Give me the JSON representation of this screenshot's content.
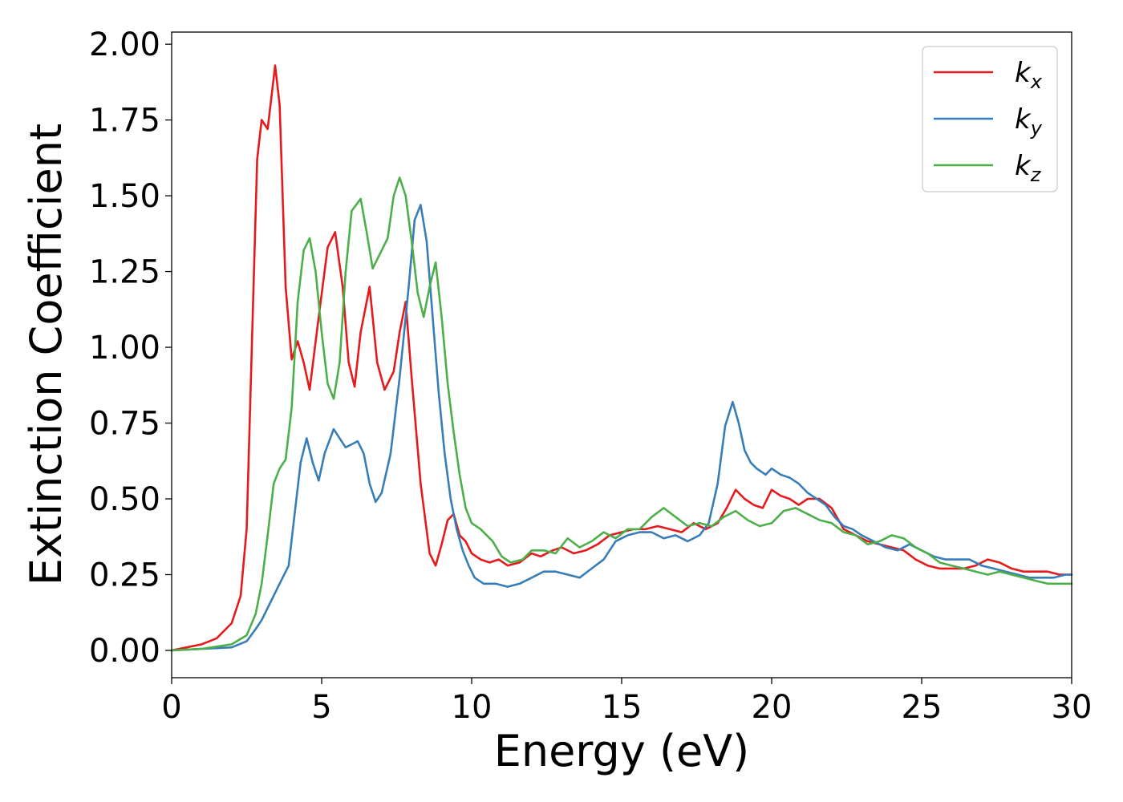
{
  "chart_data": {
    "type": "line",
    "xlabel": "Energy (eV)",
    "ylabel": "Extinction Coefficient",
    "xlim": [
      0,
      30
    ],
    "ylim": [
      -0.09,
      2.04
    ],
    "xticks": [
      "0",
      "5",
      "10",
      "15",
      "20",
      "25",
      "30"
    ],
    "xtick_values": [
      0,
      5,
      10,
      15,
      20,
      25,
      30
    ],
    "yticks": [
      "0.00",
      "0.25",
      "0.50",
      "0.75",
      "1.00",
      "1.25",
      "1.50",
      "1.75",
      "2.00"
    ],
    "ytick_values": [
      0,
      0.25,
      0.5,
      0.75,
      1.0,
      1.25,
      1.5,
      1.75,
      2.0
    ],
    "grid": false,
    "legend_position": "top-right",
    "series": [
      {
        "name": "k",
        "subscript": "x",
        "color": "#e41a1c",
        "x": [
          0,
          0.5,
          1.0,
          1.5,
          2.0,
          2.3,
          2.5,
          2.7,
          2.85,
          3.0,
          3.2,
          3.45,
          3.6,
          3.8,
          4.0,
          4.2,
          4.4,
          4.6,
          4.9,
          5.2,
          5.45,
          5.7,
          5.9,
          6.1,
          6.3,
          6.6,
          6.85,
          7.1,
          7.4,
          7.6,
          7.8,
          8.0,
          8.3,
          8.6,
          8.8,
          9.0,
          9.2,
          9.4,
          9.6,
          9.8,
          10.0,
          10.3,
          10.6,
          10.9,
          11.2,
          11.6,
          12.0,
          12.3,
          12.7,
          13.0,
          13.4,
          13.8,
          14.2,
          14.6,
          15.0,
          15.4,
          15.8,
          16.2,
          16.6,
          17.0,
          17.4,
          17.8,
          18.2,
          18.5,
          18.8,
          19.1,
          19.4,
          19.7,
          20.0,
          20.3,
          20.6,
          20.9,
          21.2,
          21.6,
          22.0,
          22.4,
          22.8,
          23.2,
          23.6,
          24.0,
          24.4,
          24.8,
          25.2,
          25.6,
          26.0,
          26.4,
          26.8,
          27.2,
          27.6,
          28.0,
          28.4,
          28.8,
          29.2,
          29.6,
          30.0
        ],
        "y": [
          0,
          0.01,
          0.02,
          0.04,
          0.09,
          0.18,
          0.4,
          1.1,
          1.62,
          1.75,
          1.72,
          1.93,
          1.8,
          1.2,
          0.96,
          1.02,
          0.95,
          0.86,
          1.1,
          1.33,
          1.38,
          1.2,
          0.95,
          0.87,
          1.05,
          1.2,
          0.95,
          0.86,
          0.92,
          1.05,
          1.15,
          0.9,
          0.55,
          0.32,
          0.28,
          0.35,
          0.43,
          0.45,
          0.38,
          0.36,
          0.32,
          0.3,
          0.29,
          0.3,
          0.28,
          0.29,
          0.32,
          0.31,
          0.33,
          0.34,
          0.32,
          0.33,
          0.35,
          0.38,
          0.39,
          0.4,
          0.4,
          0.41,
          0.4,
          0.39,
          0.42,
          0.4,
          0.42,
          0.47,
          0.53,
          0.5,
          0.48,
          0.47,
          0.53,
          0.51,
          0.5,
          0.48,
          0.5,
          0.5,
          0.47,
          0.4,
          0.38,
          0.36,
          0.35,
          0.34,
          0.33,
          0.3,
          0.28,
          0.27,
          0.27,
          0.27,
          0.28,
          0.3,
          0.29,
          0.27,
          0.26,
          0.26,
          0.26,
          0.25,
          0.25
        ]
      },
      {
        "name": "k",
        "subscript": "y",
        "color": "#377eb8",
        "x": [
          0,
          1.0,
          2.0,
          2.5,
          2.8,
          3.0,
          3.3,
          3.6,
          3.9,
          4.1,
          4.3,
          4.5,
          4.7,
          4.9,
          5.1,
          5.4,
          5.6,
          5.8,
          6.0,
          6.2,
          6.4,
          6.6,
          6.8,
          7.0,
          7.3,
          7.6,
          7.9,
          8.1,
          8.3,
          8.5,
          8.7,
          8.9,
          9.1,
          9.3,
          9.5,
          9.7,
          9.9,
          10.1,
          10.4,
          10.8,
          11.2,
          11.6,
          12.0,
          12.4,
          12.8,
          13.2,
          13.6,
          14.0,
          14.4,
          14.8,
          15.2,
          15.6,
          16.0,
          16.4,
          16.8,
          17.2,
          17.6,
          17.9,
          18.2,
          18.45,
          18.7,
          18.9,
          19.1,
          19.3,
          19.5,
          19.8,
          20.0,
          20.3,
          20.6,
          20.9,
          21.2,
          21.5,
          21.8,
          22.1,
          22.4,
          22.7,
          23.0,
          23.4,
          23.8,
          24.2,
          24.6,
          25.0,
          25.4,
          25.8,
          26.2,
          26.6,
          27.0,
          27.4,
          27.8,
          28.2,
          28.6,
          29.0,
          29.4,
          29.8,
          30.0
        ],
        "y": [
          0,
          0.005,
          0.01,
          0.03,
          0.07,
          0.1,
          0.16,
          0.22,
          0.28,
          0.45,
          0.62,
          0.7,
          0.62,
          0.56,
          0.65,
          0.73,
          0.7,
          0.67,
          0.68,
          0.69,
          0.65,
          0.55,
          0.49,
          0.52,
          0.65,
          0.9,
          1.2,
          1.42,
          1.47,
          1.35,
          1.1,
          0.85,
          0.65,
          0.5,
          0.4,
          0.33,
          0.28,
          0.24,
          0.22,
          0.22,
          0.21,
          0.22,
          0.24,
          0.26,
          0.26,
          0.25,
          0.24,
          0.27,
          0.3,
          0.36,
          0.38,
          0.39,
          0.39,
          0.37,
          0.38,
          0.36,
          0.38,
          0.42,
          0.55,
          0.74,
          0.82,
          0.75,
          0.66,
          0.62,
          0.6,
          0.58,
          0.6,
          0.58,
          0.57,
          0.55,
          0.52,
          0.5,
          0.48,
          0.44,
          0.41,
          0.4,
          0.38,
          0.36,
          0.34,
          0.33,
          0.35,
          0.33,
          0.31,
          0.3,
          0.3,
          0.3,
          0.28,
          0.27,
          0.26,
          0.25,
          0.24,
          0.24,
          0.24,
          0.25,
          0.25
        ]
      },
      {
        "name": "k",
        "subscript": "z",
        "color": "#4daf4a",
        "x": [
          0,
          1.0,
          2.0,
          2.5,
          2.8,
          3.0,
          3.2,
          3.4,
          3.6,
          3.8,
          4.0,
          4.2,
          4.4,
          4.6,
          4.8,
          5.0,
          5.2,
          5.4,
          5.6,
          5.8,
          6.0,
          6.3,
          6.5,
          6.7,
          6.9,
          7.2,
          7.4,
          7.6,
          7.8,
          8.0,
          8.2,
          8.4,
          8.6,
          8.8,
          9.0,
          9.2,
          9.4,
          9.6,
          9.8,
          10.0,
          10.3,
          10.7,
          11.0,
          11.3,
          11.7,
          12.0,
          12.4,
          12.8,
          13.2,
          13.6,
          14.0,
          14.4,
          14.8,
          15.2,
          15.6,
          16.0,
          16.4,
          16.8,
          17.2,
          17.6,
          18.0,
          18.4,
          18.8,
          19.2,
          19.6,
          20.0,
          20.4,
          20.8,
          21.2,
          21.6,
          22.0,
          22.4,
          22.8,
          23.2,
          23.6,
          24.0,
          24.4,
          24.8,
          25.2,
          25.6,
          26.0,
          26.4,
          26.8,
          27.2,
          27.6,
          28.0,
          28.4,
          28.8,
          29.2,
          29.6,
          30.0
        ],
        "y": [
          0,
          0.005,
          0.02,
          0.05,
          0.12,
          0.22,
          0.38,
          0.55,
          0.6,
          0.63,
          0.8,
          1.15,
          1.32,
          1.36,
          1.25,
          1.05,
          0.88,
          0.83,
          0.95,
          1.25,
          1.45,
          1.49,
          1.38,
          1.26,
          1.3,
          1.36,
          1.5,
          1.56,
          1.5,
          1.35,
          1.18,
          1.1,
          1.2,
          1.28,
          1.1,
          0.88,
          0.72,
          0.58,
          0.47,
          0.42,
          0.4,
          0.36,
          0.31,
          0.29,
          0.3,
          0.33,
          0.33,
          0.32,
          0.37,
          0.34,
          0.36,
          0.39,
          0.37,
          0.4,
          0.4,
          0.44,
          0.47,
          0.44,
          0.41,
          0.42,
          0.41,
          0.44,
          0.46,
          0.43,
          0.41,
          0.42,
          0.46,
          0.47,
          0.45,
          0.43,
          0.42,
          0.39,
          0.38,
          0.35,
          0.36,
          0.38,
          0.37,
          0.34,
          0.32,
          0.29,
          0.28,
          0.27,
          0.26,
          0.25,
          0.26,
          0.25,
          0.24,
          0.23,
          0.22,
          0.22,
          0.22
        ]
      }
    ]
  }
}
